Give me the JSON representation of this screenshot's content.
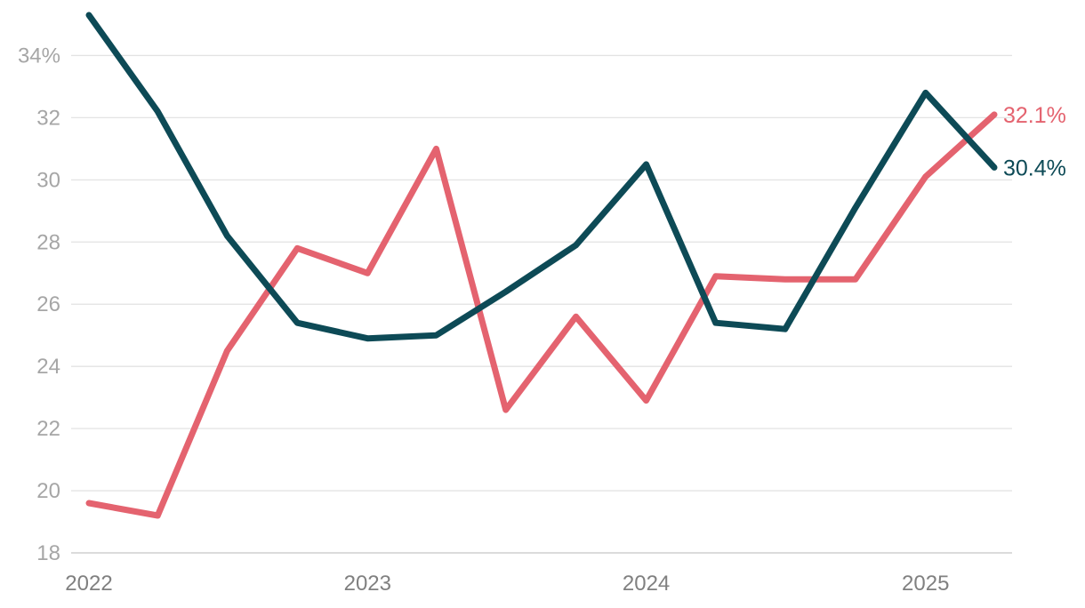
{
  "chart_data": {
    "type": "line",
    "x": [
      "2022-01-01",
      "2022-04-01",
      "2022-07-01",
      "2022-10-01",
      "2023-01-01",
      "2023-04-01",
      "2023-07-01",
      "2023-10-01",
      "2024-01-01",
      "2024-04-01",
      "2024-07-01",
      "2024-10-01",
      "2025-01-01",
      "2025-04-01"
    ],
    "x_ticks": [
      {
        "value": "2022-01-01",
        "label": "2022"
      },
      {
        "value": "2023-01-01",
        "label": "2023"
      },
      {
        "value": "2024-01-01",
        "label": "2024"
      },
      {
        "value": "2025-01-01",
        "label": "2025"
      }
    ],
    "y_ticks": [
      {
        "value": 18,
        "label": "18"
      },
      {
        "value": 20,
        "label": "20"
      },
      {
        "value": 22,
        "label": "22"
      },
      {
        "value": 24,
        "label": "24"
      },
      {
        "value": 26,
        "label": "26"
      },
      {
        "value": 28,
        "label": "28"
      },
      {
        "value": 30,
        "label": "30"
      },
      {
        "value": 32,
        "label": "32"
      },
      {
        "value": 34,
        "label": "34%"
      }
    ],
    "ylim": [
      18,
      35.5
    ],
    "grid": true,
    "title": "",
    "xlabel": "",
    "ylabel": "",
    "series": [
      {
        "color": "#e4636f",
        "end_label": "32.1%",
        "values": [
          19.6,
          19.2,
          24.5,
          27.8,
          27.0,
          31.0,
          22.6,
          25.6,
          22.9,
          26.9,
          26.8,
          26.8,
          30.1,
          32.1
        ]
      },
      {
        "color": "#0d4a56",
        "end_label": "30.4%",
        "values": [
          35.3,
          32.2,
          28.2,
          25.4,
          24.9,
          25.0,
          26.4,
          27.9,
          30.5,
          25.4,
          25.2,
          29.1,
          32.8,
          30.4
        ]
      }
    ]
  }
}
